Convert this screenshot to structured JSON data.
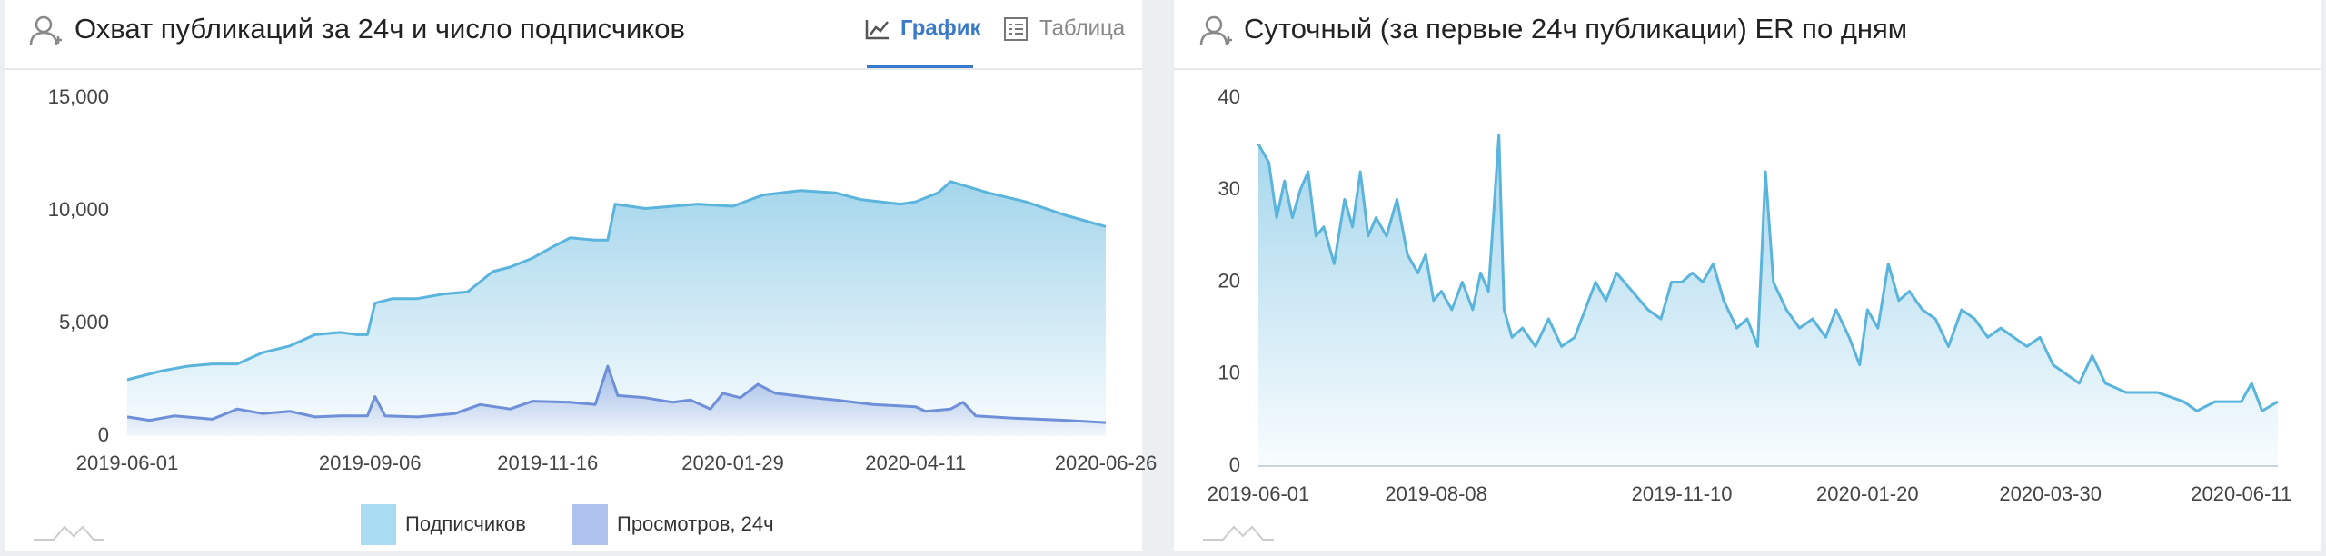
{
  "tabs": {
    "graph": "График",
    "table": "Таблица"
  },
  "chart_data": [
    {
      "type": "area",
      "title": "Охват публикаций за 24ч и число подписчиков",
      "xlim": [
        "2019-06-01",
        "2020-06-26"
      ],
      "xticks": [
        "2019-06-01",
        "2019-09-06",
        "2019-11-16",
        "2020-01-29",
        "2020-04-11",
        "2020-06-26"
      ],
      "ylim": [
        0,
        15000
      ],
      "yticks": [
        0,
        {
          "value": 5000,
          "label": "5,000"
        },
        {
          "value": 10000,
          "label": "10,000"
        },
        {
          "value": 15000,
          "label": "15,000"
        }
      ],
      "grid": false,
      "legend": "bottom",
      "series": [
        {
          "name": "Подписчиков",
          "color": "#5ab4dc",
          "legend_color": "#a9dcf0",
          "x": [
            "2019-06-01",
            "2019-06-15",
            "2019-06-25",
            "2019-07-05",
            "2019-07-15",
            "2019-07-25",
            "2019-08-05",
            "2019-08-15",
            "2019-08-25",
            "2019-09-01",
            "2019-09-05",
            "2019-09-08",
            "2019-09-15",
            "2019-09-25",
            "2019-10-05",
            "2019-10-15",
            "2019-10-25",
            "2019-11-01",
            "2019-11-10",
            "2019-11-18",
            "2019-11-25",
            "2019-12-05",
            "2019-12-10",
            "2019-12-13",
            "2019-12-25",
            "2020-01-05",
            "2020-01-15",
            "2020-01-29",
            "2020-02-10",
            "2020-02-25",
            "2020-03-10",
            "2020-03-20",
            "2020-04-05",
            "2020-04-11",
            "2020-04-20",
            "2020-04-25",
            "2020-05-10",
            "2020-05-25",
            "2020-06-10",
            "2020-06-26"
          ],
          "values": [
            2500,
            2900,
            3100,
            3200,
            3200,
            3700,
            4000,
            4500,
            4600,
            4500,
            4500,
            5900,
            6100,
            6100,
            6300,
            6400,
            7300,
            7500,
            7900,
            8400,
            8800,
            8700,
            8700,
            10300,
            10100,
            10200,
            10300,
            10200,
            10700,
            10900,
            10800,
            10500,
            10300,
            10400,
            10800,
            11300,
            10800,
            10400,
            9800,
            9300
          ]
        },
        {
          "name": "Просмотров, 24ч",
          "color": "#6f8fd8",
          "legend_color": "#b0c2ee",
          "x": [
            "2019-06-01",
            "2019-06-10",
            "2019-06-20",
            "2019-07-05",
            "2019-07-15",
            "2019-07-25",
            "2019-08-05",
            "2019-08-15",
            "2019-08-25",
            "2019-09-05",
            "2019-09-08",
            "2019-09-12",
            "2019-09-25",
            "2019-10-10",
            "2019-10-20",
            "2019-11-01",
            "2019-11-10",
            "2019-11-25",
            "2019-12-05",
            "2019-12-10",
            "2019-12-14",
            "2019-12-25",
            "2020-01-05",
            "2020-01-12",
            "2020-01-20",
            "2020-01-25",
            "2020-02-01",
            "2020-02-08",
            "2020-02-15",
            "2020-03-01",
            "2020-03-10",
            "2020-03-25",
            "2020-04-11",
            "2020-04-15",
            "2020-04-25",
            "2020-04-30",
            "2020-05-05",
            "2020-05-20",
            "2020-06-10",
            "2020-06-26"
          ],
          "values": [
            850,
            700,
            900,
            750,
            1200,
            1000,
            1100,
            850,
            900,
            900,
            1750,
            900,
            850,
            1000,
            1400,
            1200,
            1550,
            1500,
            1400,
            3100,
            1800,
            1700,
            1500,
            1600,
            1200,
            1900,
            1700,
            2300,
            1900,
            1700,
            1600,
            1400,
            1300,
            1100,
            1200,
            1500,
            900,
            800,
            700,
            600
          ]
        }
      ]
    },
    {
      "type": "area",
      "title": "Суточный (за первые 24ч публикации) ER по дням",
      "xlim": [
        "2019-06-01",
        "2020-06-25"
      ],
      "xticks": [
        "2019-06-01",
        "2019-08-08",
        "2019-11-10",
        "2020-01-20",
        "2020-03-30",
        "2020-06-11"
      ],
      "ylim": [
        0,
        40
      ],
      "yticks": [
        0,
        10,
        20,
        30,
        40
      ],
      "grid": false,
      "color": "#5ab4dc",
      "x": [
        "2019-06-01",
        "2019-06-05",
        "2019-06-08",
        "2019-06-11",
        "2019-06-14",
        "2019-06-17",
        "2019-06-20",
        "2019-06-23",
        "2019-06-26",
        "2019-06-30",
        "2019-07-04",
        "2019-07-07",
        "2019-07-10",
        "2019-07-13",
        "2019-07-16",
        "2019-07-20",
        "2019-07-24",
        "2019-07-28",
        "2019-08-01",
        "2019-08-04",
        "2019-08-07",
        "2019-08-10",
        "2019-08-14",
        "2019-08-18",
        "2019-08-22",
        "2019-08-25",
        "2019-08-28",
        "2019-09-01",
        "2019-09-03",
        "2019-09-06",
        "2019-09-10",
        "2019-09-15",
        "2019-09-20",
        "2019-09-25",
        "2019-09-30",
        "2019-10-04",
        "2019-10-08",
        "2019-10-12",
        "2019-10-16",
        "2019-10-22",
        "2019-10-28",
        "2019-11-02",
        "2019-11-06",
        "2019-11-10",
        "2019-11-14",
        "2019-11-18",
        "2019-11-22",
        "2019-11-26",
        "2019-12-01",
        "2019-12-05",
        "2019-12-09",
        "2019-12-12",
        "2019-12-15",
        "2019-12-20",
        "2019-12-25",
        "2019-12-30",
        "2020-01-04",
        "2020-01-08",
        "2020-01-13",
        "2020-01-17",
        "2020-01-20",
        "2020-01-24",
        "2020-01-28",
        "2020-02-01",
        "2020-02-05",
        "2020-02-10",
        "2020-02-15",
        "2020-02-20",
        "2020-02-25",
        "2020-03-01",
        "2020-03-06",
        "2020-03-11",
        "2020-03-16",
        "2020-03-21",
        "2020-03-26",
        "2020-03-31",
        "2020-04-05",
        "2020-04-10",
        "2020-04-15",
        "2020-04-20",
        "2020-04-28",
        "2020-05-10",
        "2020-05-20",
        "2020-05-25",
        "2020-06-01",
        "2020-06-11",
        "2020-06-15",
        "2020-06-19",
        "2020-06-25"
      ],
      "values": [
        35,
        33,
        27,
        31,
        27,
        30,
        32,
        25,
        26,
        22,
        29,
        26,
        32,
        25,
        27,
        25,
        29,
        23,
        21,
        23,
        18,
        19,
        17,
        20,
        17,
        21,
        19,
        36,
        17,
        14,
        15,
        13,
        16,
        13,
        14,
        17,
        20,
        18,
        21,
        19,
        17,
        16,
        20,
        20,
        21,
        20,
        22,
        18,
        15,
        16,
        13,
        32,
        20,
        17,
        15,
        16,
        14,
        17,
        14,
        11,
        17,
        15,
        22,
        18,
        19,
        17,
        16,
        13,
        17,
        16,
        14,
        15,
        14,
        13,
        14,
        11,
        10,
        9,
        12,
        9,
        8,
        8,
        7,
        6,
        7,
        7,
        9,
        6,
        7
      ]
    }
  ]
}
